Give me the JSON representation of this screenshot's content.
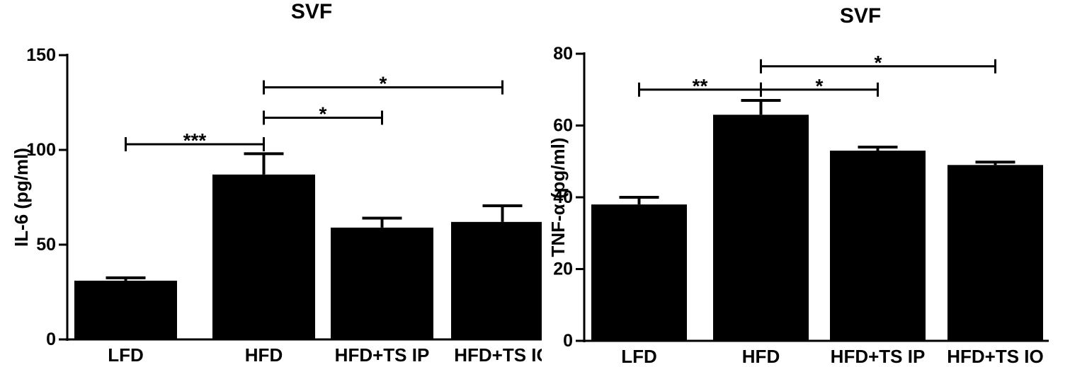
{
  "colors": {
    "bar": "#000000",
    "background": "#ffffff"
  },
  "chart_data": [
    {
      "type": "bar",
      "title": "SVF",
      "xlabel": "",
      "ylabel": "IL-6 (pg/ml)",
      "categories": [
        "LFD",
        "HFD",
        "HFD+TS IP",
        "HFD+TS IO"
      ],
      "values": [
        31,
        87,
        59,
        62
      ],
      "errors": [
        1.5,
        11,
        5,
        8.5
      ],
      "ylim": [
        0,
        150
      ],
      "yticks": [
        0,
        50,
        100,
        150
      ],
      "grid": false,
      "significance": [
        {
          "from": 0,
          "to": 1,
          "label": "***",
          "y": 103
        },
        {
          "from": 1,
          "to": 2,
          "label": "*",
          "y": 117
        },
        {
          "from": 1,
          "to": 3,
          "label": "*",
          "y": 133
        }
      ]
    },
    {
      "type": "bar",
      "title": "SVF",
      "xlabel": "",
      "ylabel": "TNF-α (pg/ml)",
      "categories": [
        "LFD",
        "HFD",
        "HFD+TS IP",
        "HFD+TS IO"
      ],
      "values": [
        38,
        63,
        53,
        49
      ],
      "errors": [
        2,
        4,
        1,
        0.8
      ],
      "ylim": [
        0,
        80
      ],
      "yticks": [
        0,
        20,
        40,
        60,
        80
      ],
      "grid": false,
      "significance": [
        {
          "from": 0,
          "to": 1,
          "label": "**",
          "y": 70
        },
        {
          "from": 1,
          "to": 2,
          "label": "*",
          "y": 70
        },
        {
          "from": 1,
          "to": 3,
          "label": "*",
          "y": 76.5
        }
      ]
    }
  ]
}
